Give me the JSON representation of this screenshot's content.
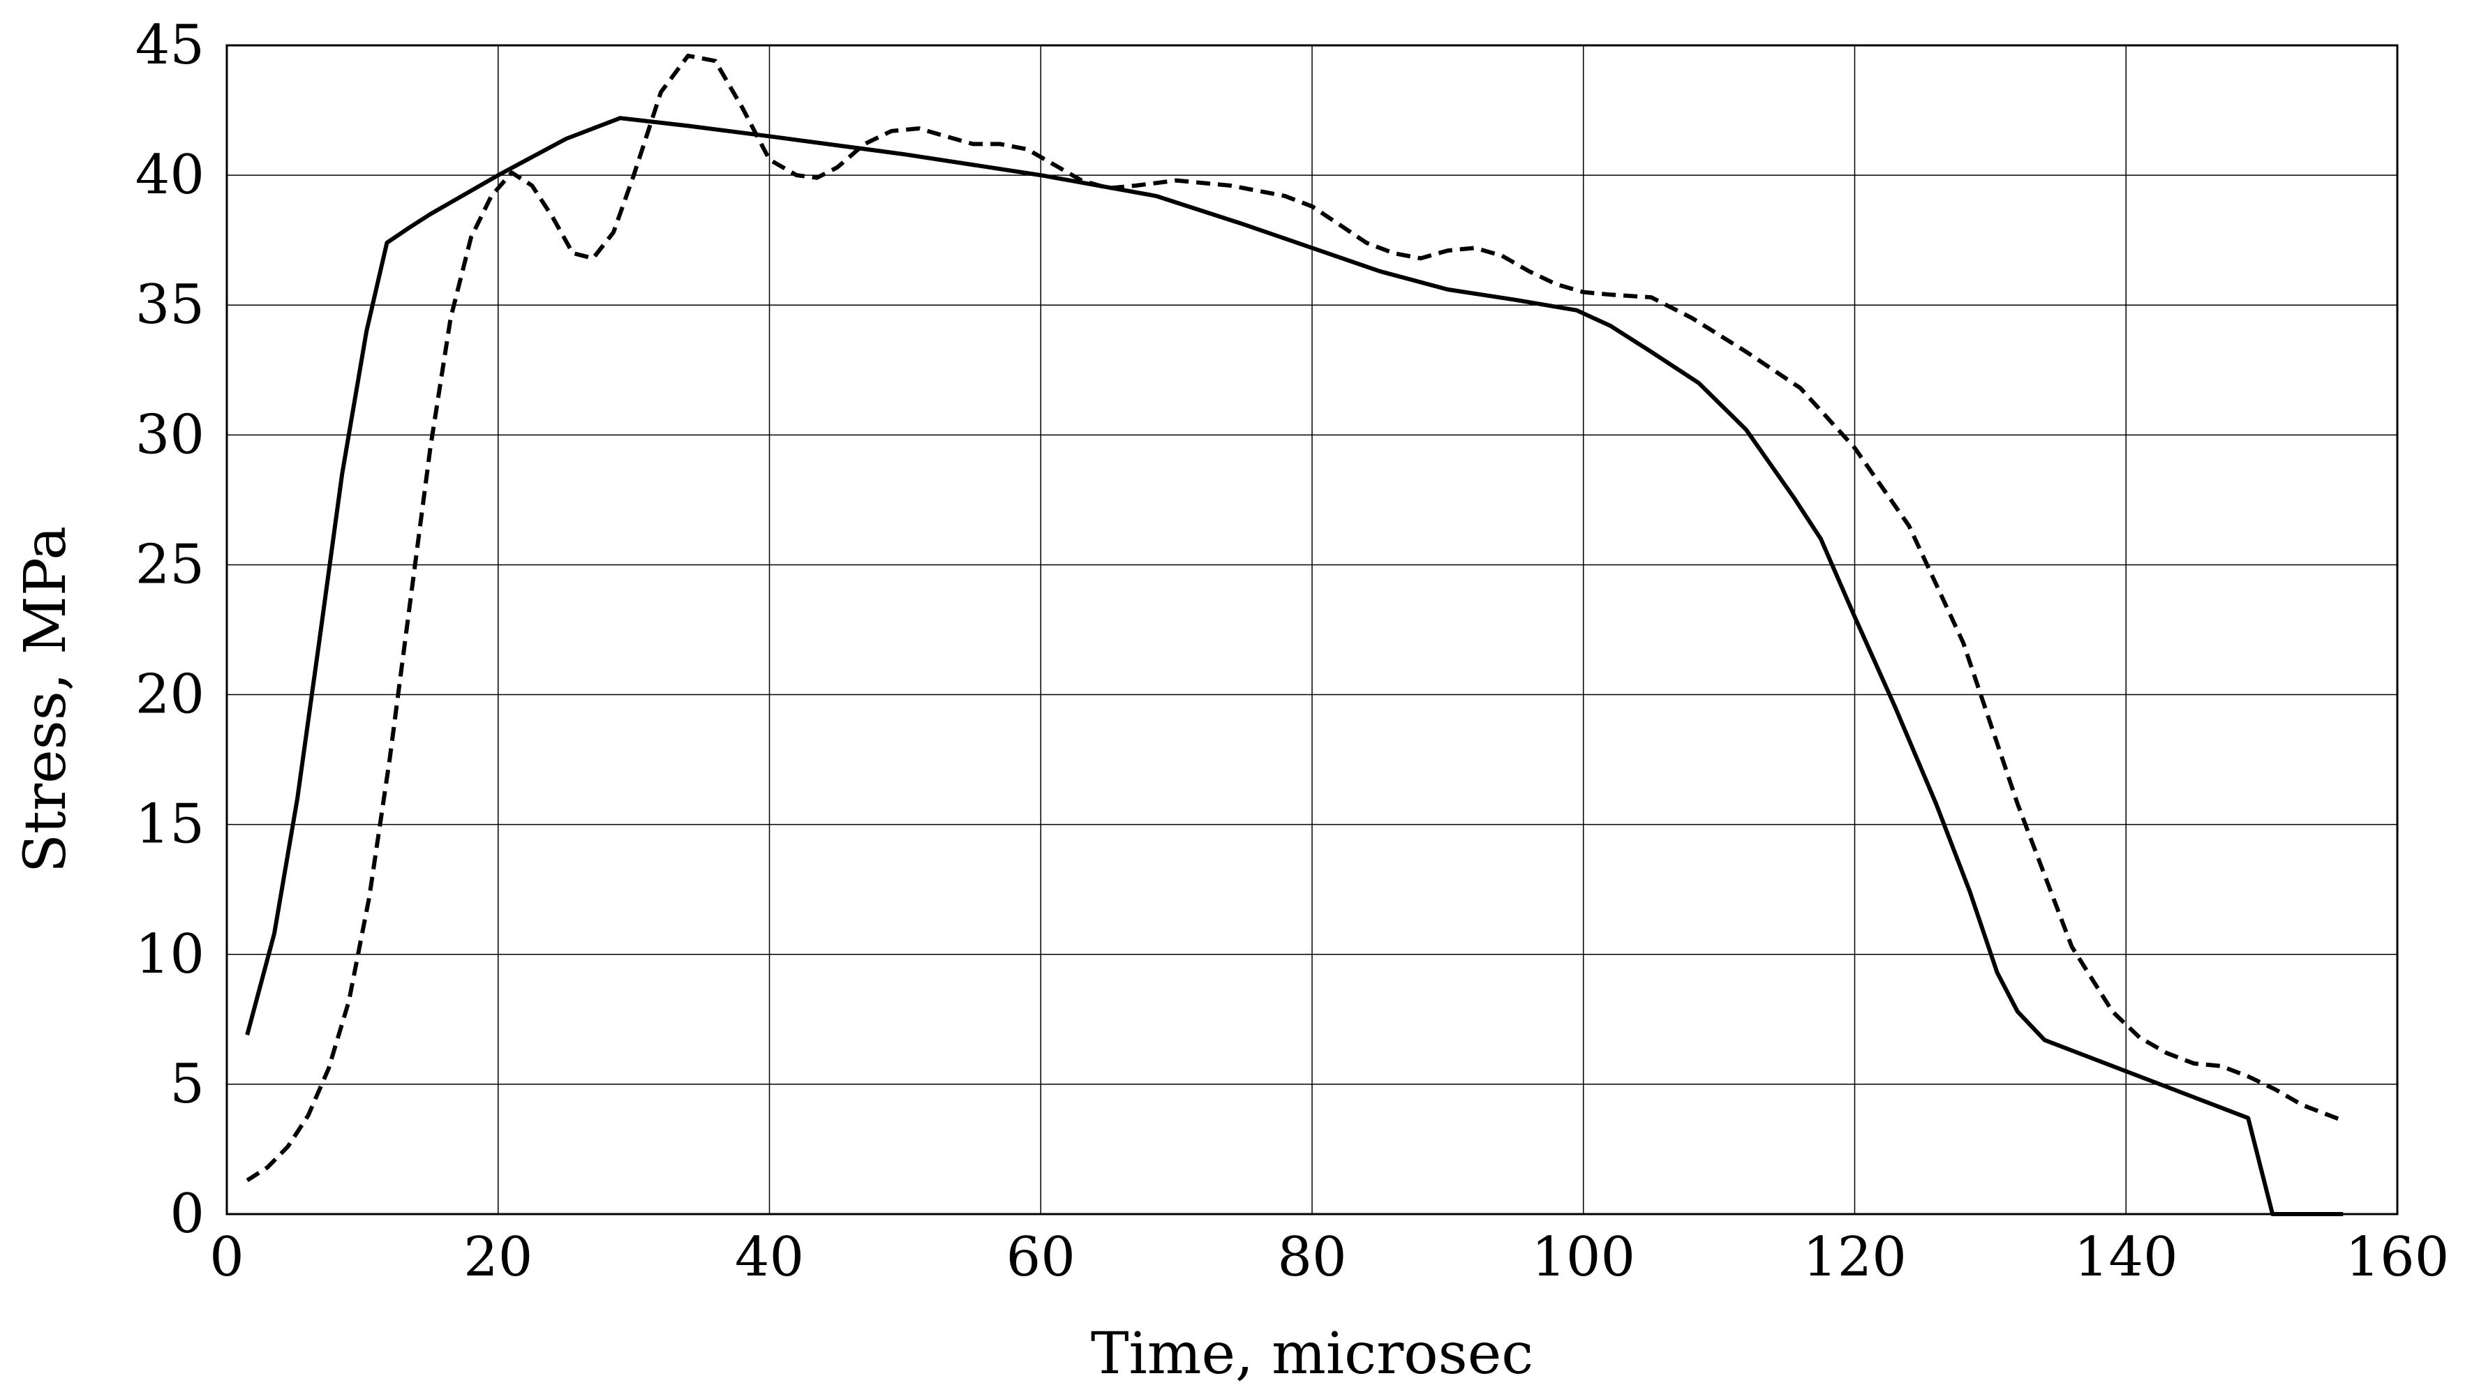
{
  "chart_data": {
    "type": "line",
    "title": "",
    "xlabel": "Time, microsec",
    "ylabel": "Stress, MPa",
    "xlim": [
      0,
      160
    ],
    "ylim": [
      0,
      45
    ],
    "x_ticks": [
      "0",
      "20",
      "40",
      "60",
      "80",
      "100",
      "120",
      "140",
      "160"
    ],
    "y_ticks": [
      "0",
      "5",
      "10",
      "15",
      "20",
      "25",
      "30",
      "35",
      "40",
      "45"
    ],
    "grid": true,
    "legend": "none",
    "series": [
      {
        "style": "solid",
        "color": "#000000",
        "x": [
          1.5,
          3.5,
          5.2,
          6.8,
          8.5,
          10.3,
          11.8,
          13.5,
          15,
          20,
          25,
          29,
          34,
          40,
          50,
          60,
          68.5,
          75,
          80,
          85,
          90,
          95,
          99.5,
          102,
          105,
          108.5,
          112,
          115.5,
          117.5,
          120,
          123,
          126,
          128.5,
          130.5,
          132,
          134,
          136,
          140,
          145,
          149,
          150.8,
          156
        ],
        "y": [
          6.9,
          10.8,
          16,
          22,
          28.5,
          34,
          37.4,
          38,
          38.5,
          40,
          41.4,
          42.2,
          41.9,
          41.5,
          40.8,
          40,
          39.2,
          38.1,
          37.2,
          36.3,
          35.6,
          35.2,
          34.8,
          34.2,
          33.2,
          32,
          30.2,
          27.6,
          26,
          23,
          19.5,
          15.8,
          12.4,
          9.3,
          7.8,
          6.7,
          6.3,
          5.5,
          4.5,
          3.7,
          0,
          0
        ]
      },
      {
        "style": "dashed",
        "color": "#000000",
        "x": [
          1.5,
          3,
          4.5,
          6,
          7.5,
          9,
          10.5,
          12,
          13.5,
          15,
          16.5,
          18,
          19.5,
          21,
          22.5,
          24,
          25.5,
          27,
          28.5,
          30,
          32,
          34,
          36,
          38,
          40,
          42,
          43.5,
          45,
          47,
          49,
          51,
          53,
          55,
          57,
          59,
          61,
          63,
          65,
          67,
          70,
          74,
          78,
          80,
          82,
          84,
          86,
          88,
          90,
          92,
          94,
          96,
          98,
          100,
          102,
          105,
          108,
          112,
          116,
          120,
          124,
          128,
          132,
          136,
          139,
          141,
          143,
          145,
          147,
          149,
          151,
          153,
          155,
          156
        ],
        "y": [
          1.3,
          1.8,
          2.6,
          3.8,
          5.6,
          8.2,
          12.2,
          17.5,
          23.5,
          29.5,
          34.5,
          37.6,
          39.2,
          40.1,
          39.6,
          38.4,
          37,
          36.8,
          37.8,
          40,
          43.2,
          44.6,
          44.4,
          42.6,
          40.6,
          40,
          39.9,
          40.3,
          41.2,
          41.7,
          41.8,
          41.5,
          41.2,
          41.2,
          41,
          40.4,
          39.8,
          39.5,
          39.6,
          39.8,
          39.6,
          39.2,
          38.8,
          38.1,
          37.4,
          37,
          36.8,
          37.1,
          37.2,
          36.9,
          36.3,
          35.8,
          35.5,
          35.4,
          35.3,
          34.5,
          33.2,
          31.8,
          29.5,
          26.5,
          22,
          15.8,
          10.3,
          7.8,
          6.8,
          6.2,
          5.8,
          5.7,
          5.3,
          4.8,
          4.2,
          3.8,
          3.6
        ]
      }
    ]
  }
}
